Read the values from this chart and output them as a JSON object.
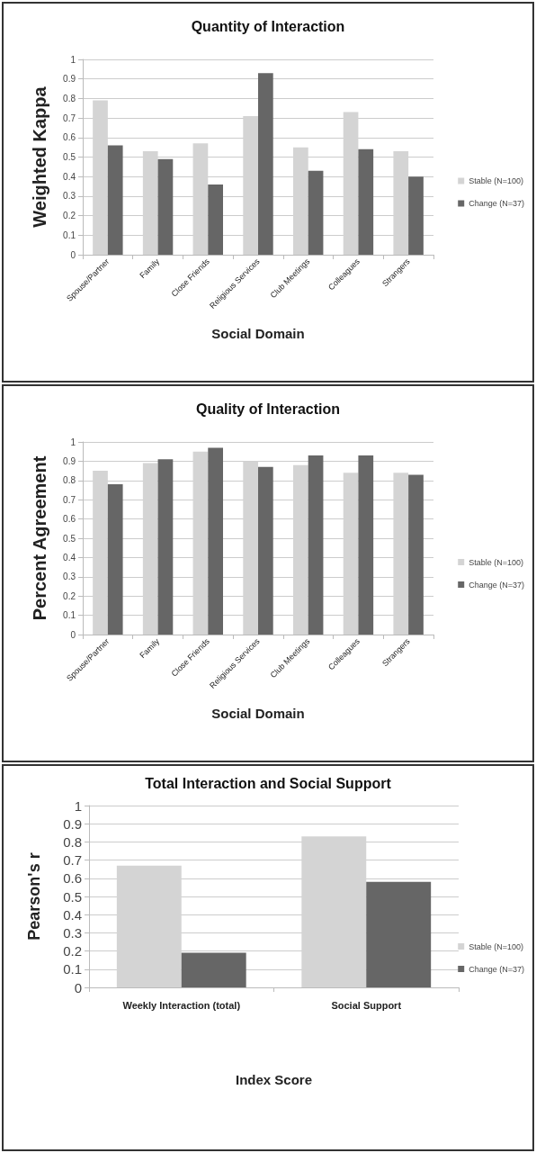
{
  "chart_data": [
    {
      "type": "bar",
      "title": "Quantity of Interaction",
      "xlabel": "Social Domain",
      "ylabel": "Weighted Kappa",
      "categories": [
        "Spouse/Partner",
        "Family",
        "Close Friends",
        "Religious Services",
        "Club Meetings",
        "Colleagues",
        "Strangers"
      ],
      "series": [
        {
          "name": "Stable (N=100)",
          "color": "#d4d4d4",
          "values": [
            0.79,
            0.53,
            0.57,
            0.71,
            0.55,
            0.73,
            0.53
          ]
        },
        {
          "name": "Change (N=37)",
          "color": "#666666",
          "values": [
            0.56,
            0.49,
            0.36,
            0.93,
            0.43,
            0.54,
            0.4
          ]
        }
      ],
      "ylim": [
        0,
        1
      ],
      "yticks": [
        0,
        0.1,
        0.2,
        0.3,
        0.4,
        0.5,
        0.6,
        0.7,
        0.8,
        0.9,
        1
      ],
      "grid": "y",
      "legend": "right"
    },
    {
      "type": "bar",
      "title": "Quality of Interaction",
      "xlabel": "Social Domain",
      "ylabel": "Percent Agreement",
      "categories": [
        "Spouse/Partner",
        "Family",
        "Close Friends",
        "Religious Services",
        "Club Meetings",
        "Colleagues",
        "Strangers"
      ],
      "series": [
        {
          "name": "Stable (N=100)",
          "color": "#d4d4d4",
          "values": [
            0.85,
            0.89,
            0.95,
            0.9,
            0.88,
            0.84,
            0.84
          ]
        },
        {
          "name": "Change (N=37)",
          "color": "#666666",
          "values": [
            0.78,
            0.91,
            0.97,
            0.87,
            0.93,
            0.93,
            0.83
          ]
        }
      ],
      "ylim": [
        0,
        1
      ],
      "yticks": [
        0,
        0.1,
        0.2,
        0.3,
        0.4,
        0.5,
        0.6,
        0.7,
        0.8,
        0.9,
        1
      ],
      "grid": "y",
      "legend": "right"
    },
    {
      "type": "bar",
      "title": "Total Interaction and Social Support",
      "xlabel": "Index Score",
      "ylabel": "Pearson's r",
      "categories": [
        "Weekly Interaction (total)",
        "Social Support"
      ],
      "series": [
        {
          "name": "Stable (N=100)",
          "color": "#d4d4d4",
          "values": [
            0.67,
            0.83
          ]
        },
        {
          "name": "Change (N=37)",
          "color": "#666666",
          "values": [
            0.19,
            0.58
          ]
        }
      ],
      "ylim": [
        0,
        1
      ],
      "yticks": [
        0,
        0.1,
        0.2,
        0.3,
        0.4,
        0.5,
        0.6,
        0.7,
        0.8,
        0.9,
        1
      ],
      "grid": "y",
      "legend": "right"
    }
  ]
}
